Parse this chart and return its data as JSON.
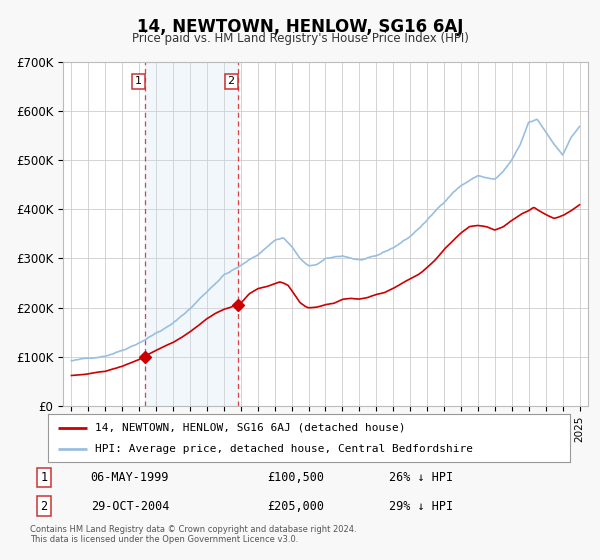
{
  "title": "14, NEWTOWN, HENLOW, SG16 6AJ",
  "subtitle": "Price paid vs. HM Land Registry's House Price Index (HPI)",
  "ylim": [
    0,
    700000
  ],
  "yticks": [
    0,
    100000,
    200000,
    300000,
    400000,
    500000,
    600000,
    700000
  ],
  "ytick_labels": [
    "£0",
    "£100K",
    "£200K",
    "£300K",
    "£400K",
    "£500K",
    "£600K",
    "£700K"
  ],
  "hpi_color": "#99bfe0",
  "price_color": "#cc0000",
  "background_color": "#f8f8f8",
  "plot_bg_color": "#ffffff",
  "grid_color": "#cccccc",
  "shade_color": "#cce0f0",
  "marker1_date": 1999.37,
  "marker1_price": 100500,
  "marker2_date": 2004.83,
  "marker2_price": 205000,
  "legend_label1": "14, NEWTOWN, HENLOW, SG16 6AJ (detached house)",
  "legend_label2": "HPI: Average price, detached house, Central Bedfordshire",
  "table_row1_num": "1",
  "table_row1_date": "06-MAY-1999",
  "table_row1_price": "£100,500",
  "table_row1_hpi": "26% ↓ HPI",
  "table_row2_num": "2",
  "table_row2_date": "29-OCT-2004",
  "table_row2_price": "£205,000",
  "table_row2_hpi": "29% ↓ HPI",
  "footnote": "Contains HM Land Registry data © Crown copyright and database right 2024.\nThis data is licensed under the Open Government Licence v3.0.",
  "xlim_left": 1994.5,
  "xlim_right": 2025.5
}
